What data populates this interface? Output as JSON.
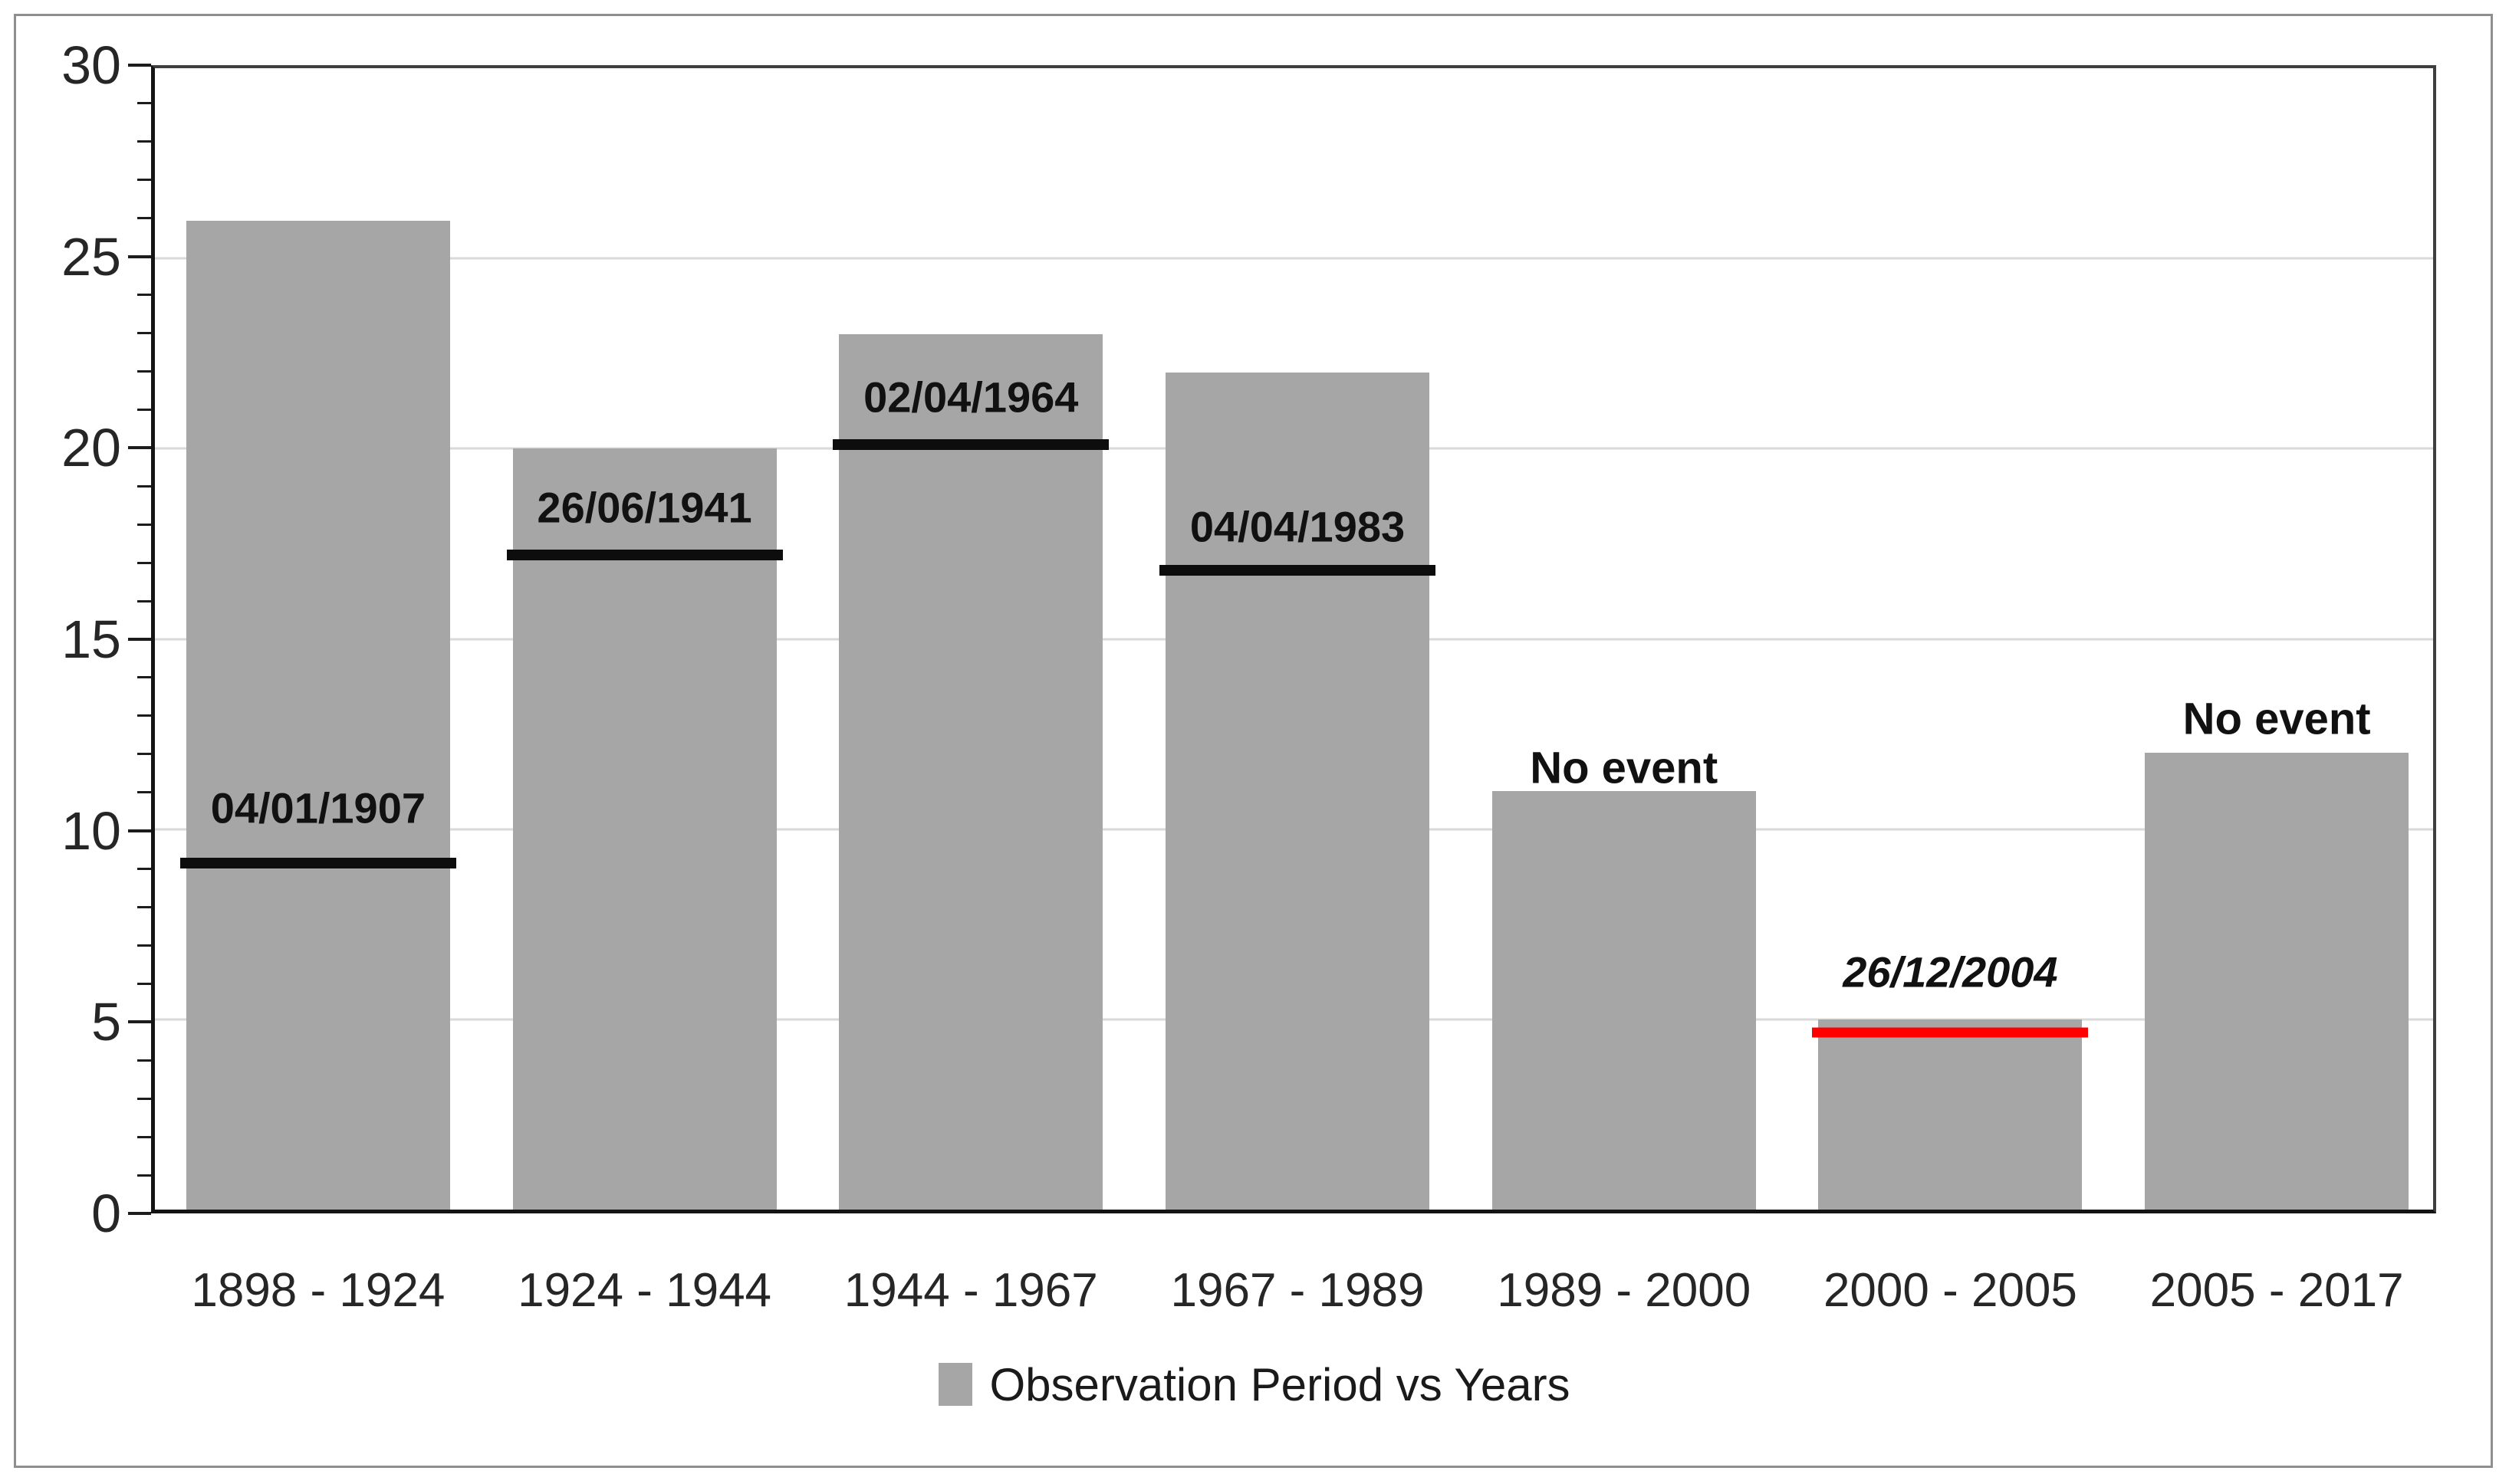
{
  "figure": {
    "legend": {
      "label": "Observation Period vs Years",
      "swatch_color": "#a6a6a6"
    },
    "colors": {
      "bar": "#a6a6a6",
      "event_line": "#0d0d0d",
      "event_line_red": "#ff0000",
      "gridline": "#d9d9d9",
      "axis": "#141414",
      "plot_border": "#3f3f3f",
      "outer_border": "#8f8f8f",
      "text": "#1a1a1a"
    }
  },
  "chart_data": {
    "type": "bar",
    "title": "",
    "xlabel": "",
    "ylabel": "",
    "categories": [
      "1898 - 1924",
      "1924 - 1944",
      "1944 - 1967",
      "1967 - 1989",
      "1989 - 2000",
      "2000 - 2005",
      "2005 - 2017"
    ],
    "series": [
      {
        "name": "Observation Period vs Years",
        "values": [
          26,
          20,
          23,
          22,
          11,
          5,
          12
        ]
      }
    ],
    "ylim": [
      0,
      30
    ],
    "yticks": [
      0,
      5,
      10,
      15,
      20,
      25,
      30
    ],
    "minor_tick_step": 1,
    "grid": true,
    "gridline_values": [
      5,
      10,
      15,
      20,
      25
    ],
    "legend_position": "bottom-center",
    "annotations": [
      {
        "category": "1898 - 1924",
        "label": "04/01/1907",
        "line_value": 9.1,
        "line_color": "black",
        "italic": false,
        "label_y": 10.55
      },
      {
        "category": "1924 - 1944",
        "label": "26/06/1941",
        "line_value": 17.2,
        "line_color": "black",
        "italic": false,
        "label_y": 18.45
      },
      {
        "category": "1944 - 1967",
        "label": "02/04/1964",
        "line_value": 20.1,
        "line_color": "black",
        "italic": false,
        "label_y": 21.35
      },
      {
        "category": "1967 - 1989",
        "label": "04/04/1983",
        "line_value": 16.8,
        "line_color": "black",
        "italic": false,
        "label_y": 17.95
      },
      {
        "category": "1989 - 2000",
        "label": "No event",
        "line_value": null,
        "line_color": null,
        "italic": false,
        "label_y": 11.6
      },
      {
        "category": "2000 - 2005",
        "label": "26/12/2004",
        "line_value": 4.65,
        "line_color": "red",
        "italic": true,
        "label_y": 6.25
      },
      {
        "category": "2005 - 2017",
        "label": "No event",
        "line_value": null,
        "line_color": null,
        "italic": false,
        "label_y": 12.9
      }
    ]
  }
}
